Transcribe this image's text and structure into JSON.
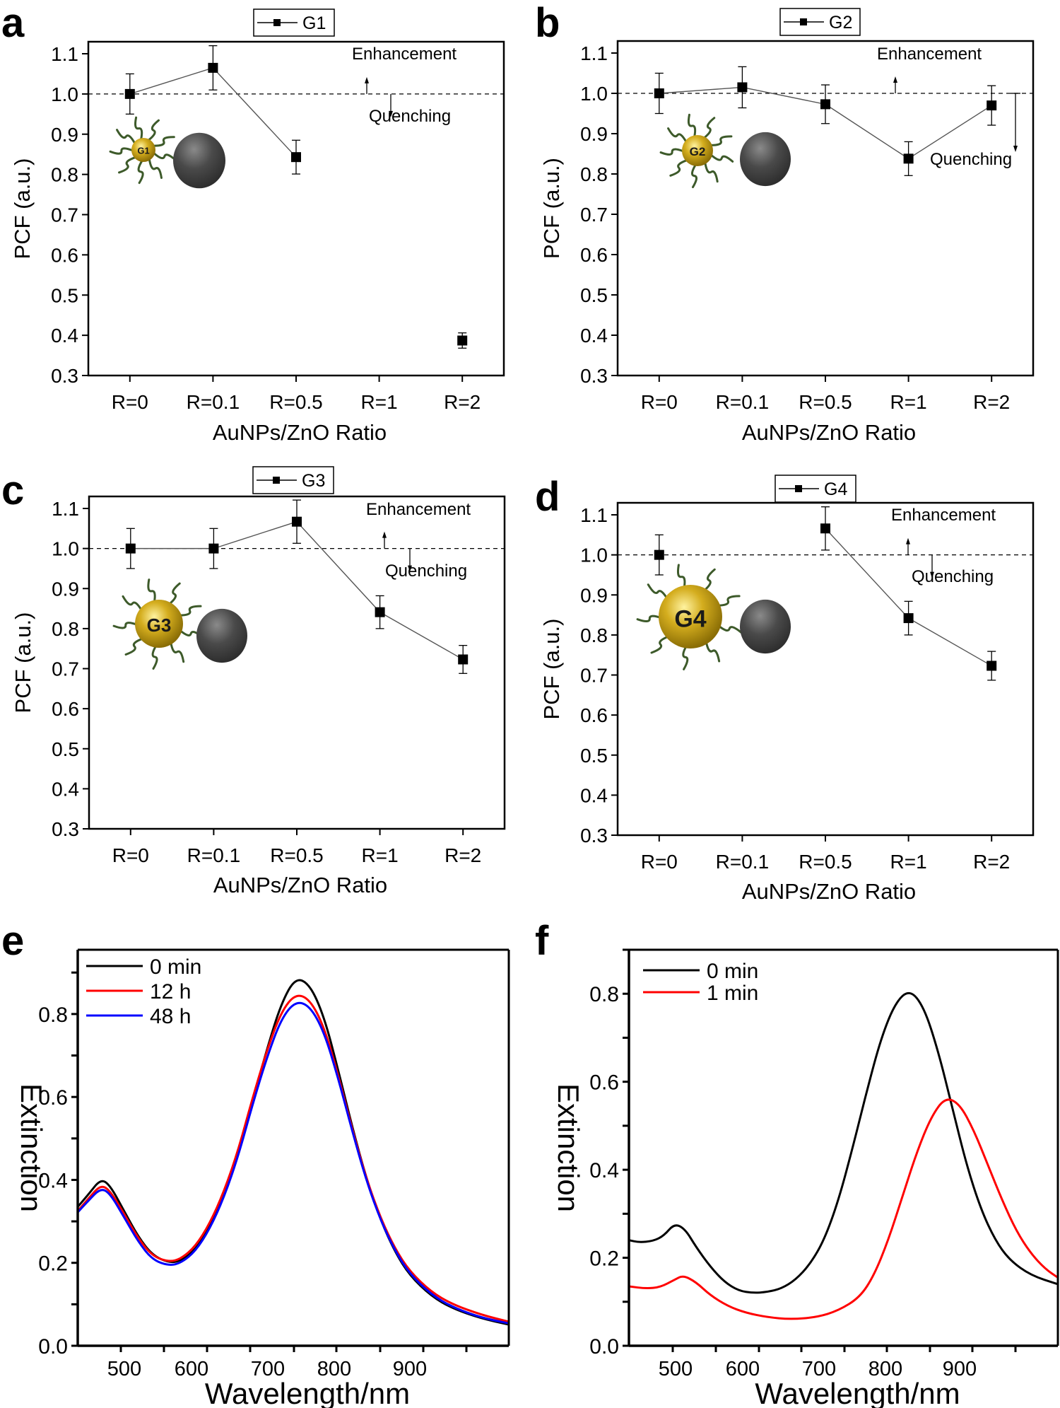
{
  "figure": {
    "colors": {
      "axis": "#000000",
      "series_line": "#555555",
      "marker": "#000000",
      "gold": "#d4ad1e",
      "gold_dark": "#8a6d05",
      "ligand": "#3d5a2a",
      "zno": "#4a4a4a",
      "spectrum_black": "#000000",
      "spectrum_red": "#ff0000",
      "spectrum_blue": "#0000ff"
    }
  },
  "chart_data": [
    {
      "panel": "a",
      "type": "line",
      "title": "",
      "legend": [
        "G1"
      ],
      "legend_position": "top-center",
      "xlabel": "AuNPs/ZnO Ratio",
      "ylabel": "PCF (a.u.)",
      "categories": [
        "R=0",
        "R=0.1",
        "R=0.5",
        "R=1",
        "R=2"
      ],
      "ylim": [
        0.3,
        1.1
      ],
      "yticks": [
        "0.3",
        "0.4",
        "0.5",
        "0.6",
        "0.7",
        "0.8",
        "0.9",
        "1.0",
        "1.1"
      ],
      "reference_line": 1.0,
      "annotations": {
        "above": "Enhancement",
        "below": "Quenching"
      },
      "inset_label": "G1",
      "series": [
        {
          "name": "G1",
          "values": [
            1.0,
            1.065,
            0.843,
            null,
            0.387
          ],
          "errors": [
            0.05,
            0.055,
            0.042,
            null,
            0.019
          ],
          "connected": [
            true,
            true,
            false,
            false
          ]
        }
      ]
    },
    {
      "panel": "b",
      "type": "line",
      "title": "",
      "legend": [
        "G2"
      ],
      "legend_position": "top-center",
      "xlabel": "AuNPs/ZnO Ratio",
      "ylabel": "PCF (a.u.)",
      "categories": [
        "R=0",
        "R=0.1",
        "R=0.5",
        "R=1",
        "R=2"
      ],
      "ylim": [
        0.3,
        1.1
      ],
      "yticks": [
        "0.3",
        "0.4",
        "0.5",
        "0.6",
        "0.7",
        "0.8",
        "0.9",
        "1.0",
        "1.1"
      ],
      "reference_line": 1.0,
      "annotations": {
        "above": "Enhancement",
        "below": "Quenching"
      },
      "inset_label": "G2",
      "series": [
        {
          "name": "G2",
          "values": [
            1.0,
            1.015,
            0.973,
            0.838,
            0.97
          ],
          "errors": [
            0.05,
            0.051,
            0.048,
            0.042,
            0.049
          ],
          "connected": [
            true,
            true,
            true,
            true
          ]
        }
      ]
    },
    {
      "panel": "c",
      "type": "line",
      "title": "",
      "legend": [
        "G3"
      ],
      "legend_position": "top-center",
      "xlabel": "AuNPs/ZnO Ratio",
      "ylabel": "PCF (a.u.)",
      "categories": [
        "R=0",
        "R=0.1",
        "R=0.5",
        "R=1",
        "R=2"
      ],
      "ylim": [
        0.3,
        1.1
      ],
      "yticks": [
        "0.3",
        "0.4",
        "0.5",
        "0.6",
        "0.7",
        "0.8",
        "0.9",
        "1.0",
        "1.1"
      ],
      "reference_line": 1.0,
      "annotations": {
        "above": "Enhancement",
        "below": "Quenching"
      },
      "inset_label": "G3",
      "series": [
        {
          "name": "G3",
          "values": [
            1.0,
            1.0,
            1.067,
            0.841,
            0.723
          ],
          "errors": [
            0.05,
            0.05,
            0.054,
            0.041,
            0.035
          ],
          "connected": [
            true,
            true,
            true,
            true
          ]
        }
      ]
    },
    {
      "panel": "d",
      "type": "line",
      "title": "",
      "legend": [
        "G4"
      ],
      "legend_position": "top-center",
      "xlabel": "AuNPs/ZnO Ratio",
      "ylabel": "PCF (a.u.)",
      "categories": [
        "R=0",
        "R=0.1",
        "R=0.5",
        "R=1",
        "R=2"
      ],
      "ylim": [
        0.3,
        1.1
      ],
      "yticks": [
        "0.3",
        "0.4",
        "0.5",
        "0.6",
        "0.7",
        "0.8",
        "0.9",
        "1.0",
        "1.1"
      ],
      "reference_line": 1.0,
      "annotations": {
        "above": "Enhancement",
        "below": "Quenching"
      },
      "inset_label": "G4",
      "series": [
        {
          "name": "G4",
          "values": [
            1.0,
            null,
            1.066,
            0.842,
            0.723
          ],
          "errors": [
            0.05,
            null,
            0.054,
            0.042,
            0.036
          ],
          "connected": [
            false,
            false,
            true,
            true
          ]
        }
      ]
    },
    {
      "panel": "e",
      "type": "line",
      "title": "",
      "xlabel": "Wavelength/nm",
      "ylabel": "Extinction",
      "xlim": [
        435,
        1039
      ],
      "ylim": [
        0.0,
        0.955
      ],
      "xticks": [
        "500",
        "600",
        "700",
        "800",
        "900"
      ],
      "yticks": [
        "0.0",
        "0.2",
        "0.4",
        "0.6",
        "0.8"
      ],
      "legend_position": "top-left",
      "series": [
        {
          "name": "0 min",
          "color": "#000000",
          "x": [
            435,
            450,
            467,
            480,
            500,
            520,
            540,
            563,
            580,
            600,
            620,
            640,
            660,
            680,
            700,
            720,
            740,
            760,
            780,
            800,
            820,
            840,
            860,
            880,
            900,
            930,
            960,
            1000,
            1039
          ],
          "y": [
            0.335,
            0.365,
            0.402,
            0.388,
            0.325,
            0.262,
            0.218,
            0.2,
            0.205,
            0.232,
            0.285,
            0.36,
            0.46,
            0.59,
            0.715,
            0.825,
            0.888,
            0.872,
            0.795,
            0.665,
            0.525,
            0.4,
            0.3,
            0.225,
            0.17,
            0.12,
            0.09,
            0.066,
            0.051
          ]
        },
        {
          "name": "12 h",
          "color": "#ff0000",
          "x": [
            435,
            450,
            467,
            480,
            500,
            520,
            540,
            563,
            580,
            600,
            620,
            640,
            660,
            680,
            700,
            720,
            740,
            760,
            780,
            800,
            820,
            840,
            860,
            880,
            900,
            930,
            960,
            1000,
            1039
          ],
          "y": [
            0.325,
            0.355,
            0.388,
            0.375,
            0.318,
            0.258,
            0.216,
            0.202,
            0.21,
            0.24,
            0.295,
            0.372,
            0.472,
            0.598,
            0.712,
            0.805,
            0.849,
            0.836,
            0.77,
            0.652,
            0.52,
            0.4,
            0.305,
            0.233,
            0.18,
            0.13,
            0.1,
            0.075,
            0.058
          ]
        },
        {
          "name": "48 h",
          "color": "#0000ff",
          "x": [
            435,
            450,
            467,
            480,
            500,
            520,
            540,
            563,
            580,
            600,
            620,
            640,
            660,
            680,
            700,
            720,
            740,
            760,
            780,
            800,
            820,
            840,
            860,
            880,
            900,
            930,
            960,
            1000,
            1039
          ],
          "y": [
            0.322,
            0.35,
            0.38,
            0.368,
            0.31,
            0.25,
            0.207,
            0.193,
            0.2,
            0.228,
            0.282,
            0.358,
            0.458,
            0.582,
            0.695,
            0.788,
            0.831,
            0.82,
            0.758,
            0.645,
            0.515,
            0.395,
            0.3,
            0.228,
            0.174,
            0.124,
            0.093,
            0.068,
            0.054
          ]
        }
      ]
    },
    {
      "panel": "f",
      "type": "line",
      "title": "",
      "xlabel": "Wavelength/nm",
      "ylabel": "Extinction",
      "xlim": [
        436,
        1038
      ],
      "ylim": [
        0.0,
        0.9
      ],
      "xticks": [
        "500",
        "600",
        "700",
        "800",
        "900"
      ],
      "yticks": [
        "0.0",
        "0.2",
        "0.4",
        "0.6",
        "0.8"
      ],
      "legend_position": "top-left",
      "series": [
        {
          "name": "0 min",
          "color": "#000000",
          "x": [
            436,
            450,
            470,
            485,
            500,
            515,
            530,
            550,
            570,
            590,
            610,
            630,
            650,
            670,
            690,
            710,
            730,
            750,
            770,
            790,
            810,
            830,
            850,
            870,
            890,
            910,
            930,
            950,
            970,
            1000,
            1038
          ],
          "y": [
            0.24,
            0.235,
            0.238,
            0.25,
            0.278,
            0.265,
            0.225,
            0.18,
            0.145,
            0.125,
            0.12,
            0.122,
            0.13,
            0.15,
            0.185,
            0.24,
            0.33,
            0.45,
            0.58,
            0.7,
            0.78,
            0.81,
            0.77,
            0.67,
            0.54,
            0.41,
            0.31,
            0.24,
            0.195,
            0.16,
            0.14
          ]
        },
        {
          "name": "1 min",
          "color": "#ff0000",
          "x": [
            436,
            460,
            480,
            500,
            512,
            530,
            550,
            575,
            600,
            630,
            663,
            700,
            730,
            760,
            780,
            800,
            820,
            840,
            860,
            880,
            900,
            920,
            940,
            960,
            980,
            1000,
            1020,
            1038
          ],
          "y": [
            0.135,
            0.13,
            0.133,
            0.15,
            0.16,
            0.145,
            0.115,
            0.09,
            0.075,
            0.065,
            0.06,
            0.065,
            0.08,
            0.11,
            0.16,
            0.24,
            0.34,
            0.44,
            0.52,
            0.565,
            0.55,
            0.49,
            0.41,
            0.33,
            0.26,
            0.21,
            0.175,
            0.155
          ]
        }
      ]
    }
  ]
}
